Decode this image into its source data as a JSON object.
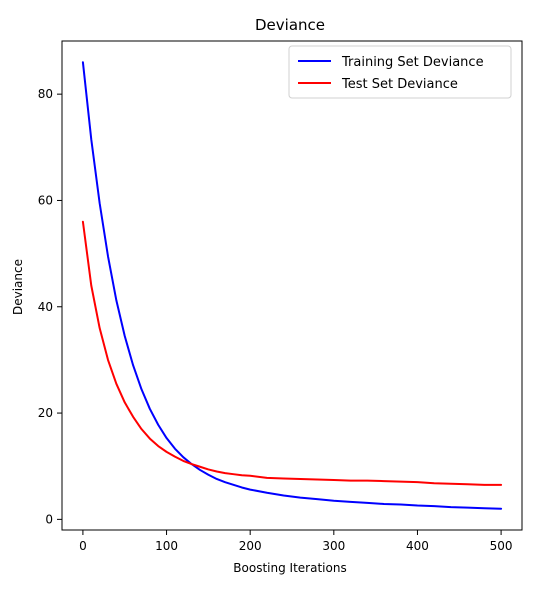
{
  "chart_data": {
    "type": "line",
    "title": "Deviance",
    "xlabel": "Boosting Iterations",
    "ylabel": "Deviance",
    "xlim": [
      -25,
      525
    ],
    "ylim": [
      -2,
      90
    ],
    "xticks": [
      0,
      100,
      200,
      300,
      400,
      500
    ],
    "yticks": [
      0,
      20,
      40,
      60,
      80
    ],
    "grid": false,
    "legend_position": "top-right",
    "series": [
      {
        "name": "Training Set Deviance",
        "color": "#0000ff",
        "x": [
          0,
          10,
          20,
          30,
          40,
          50,
          60,
          70,
          80,
          90,
          100,
          110,
          120,
          130,
          140,
          150,
          160,
          170,
          180,
          190,
          200,
          220,
          240,
          260,
          280,
          300,
          320,
          340,
          360,
          380,
          400,
          420,
          440,
          460,
          480,
          500
        ],
        "y": [
          86,
          71.5,
          59.5,
          49.5,
          41.2,
          34.5,
          29.0,
          24.5,
          20.8,
          17.8,
          15.3,
          13.3,
          11.7,
          10.4,
          9.3,
          8.4,
          7.6,
          7.0,
          6.5,
          6.0,
          5.6,
          5.0,
          4.5,
          4.1,
          3.8,
          3.5,
          3.3,
          3.1,
          2.9,
          2.8,
          2.6,
          2.5,
          2.3,
          2.2,
          2.1,
          2.0
        ]
      },
      {
        "name": "Test Set Deviance",
        "color": "#ff0000",
        "x": [
          0,
          10,
          20,
          30,
          40,
          50,
          60,
          70,
          80,
          90,
          100,
          110,
          120,
          130,
          140,
          150,
          160,
          170,
          180,
          190,
          200,
          220,
          240,
          260,
          280,
          300,
          320,
          340,
          360,
          380,
          400,
          420,
          440,
          460,
          480,
          500
        ],
        "y": [
          56,
          44.0,
          36.0,
          30.0,
          25.5,
          22.0,
          19.3,
          17.0,
          15.2,
          13.8,
          12.7,
          11.8,
          11.0,
          10.4,
          9.9,
          9.4,
          9.0,
          8.7,
          8.5,
          8.3,
          8.2,
          7.8,
          7.7,
          7.6,
          7.5,
          7.4,
          7.3,
          7.3,
          7.2,
          7.1,
          7.0,
          6.8,
          6.7,
          6.6,
          6.5,
          6.5
        ]
      }
    ]
  }
}
